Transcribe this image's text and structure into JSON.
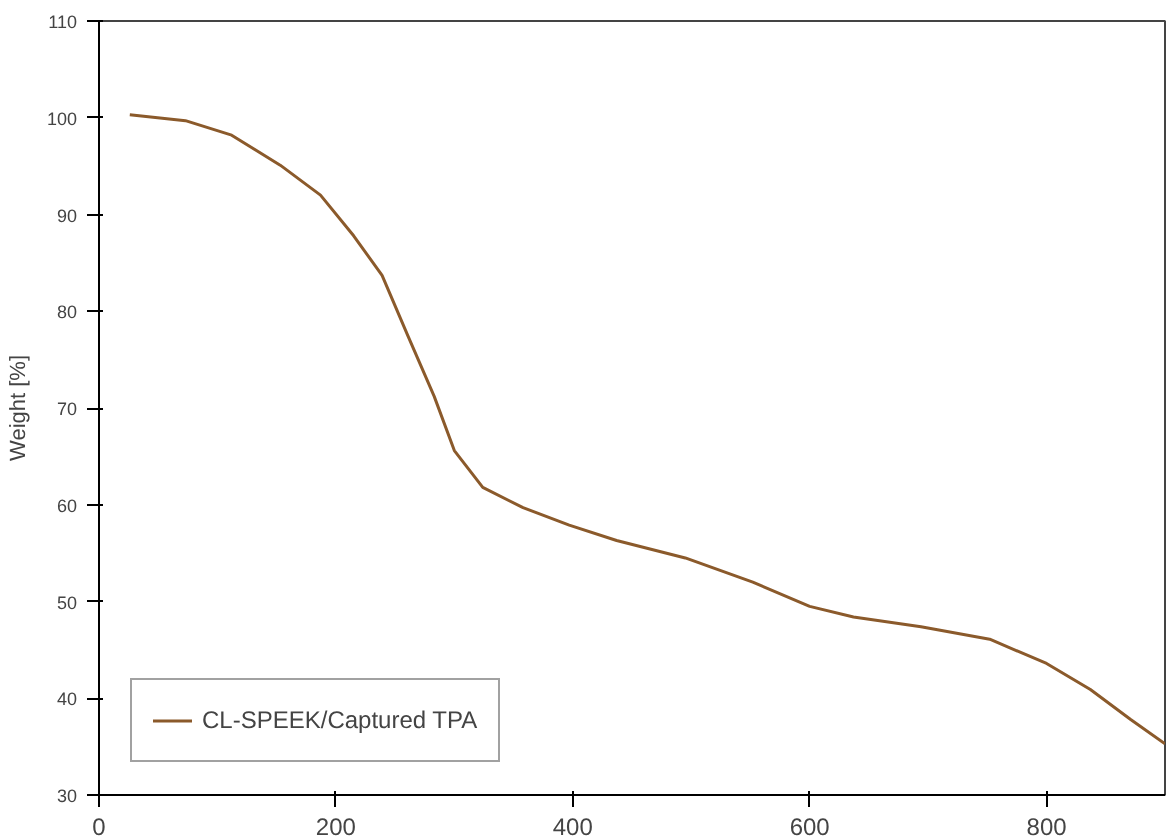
{
  "chart_data": {
    "type": "line",
    "ylabel": "Weight [%]",
    "xlim": [
      0,
      900
    ],
    "xticks": [
      0,
      200,
      400,
      600,
      800
    ],
    "ylim": [
      30,
      110
    ],
    "yticks": [
      30,
      40,
      50,
      60,
      70,
      80,
      90,
      100,
      110
    ],
    "grid": false,
    "legend": "bottom left",
    "marker": "none",
    "line_style": "solid",
    "series": [
      {
        "name": "CL-SPEEK/Captured TPA",
        "color": "#8b5a2b",
        "x": [
          26,
          73,
          112,
          153,
          187,
          215,
          239,
          261,
          283,
          300,
          324,
          358,
          397,
          437,
          495,
          552,
          600,
          637,
          694,
          752,
          800,
          837,
          871,
          900
        ],
        "values": [
          100.3,
          99.7,
          98.2,
          95.1,
          92.0,
          87.8,
          83.7,
          77.4,
          71.2,
          65.6,
          61.8,
          59.7,
          57.9,
          56.3,
          54.5,
          52.0,
          49.5,
          48.4,
          47.4,
          46.1,
          43.6,
          40.9,
          37.8,
          35.3
        ]
      }
    ]
  }
}
